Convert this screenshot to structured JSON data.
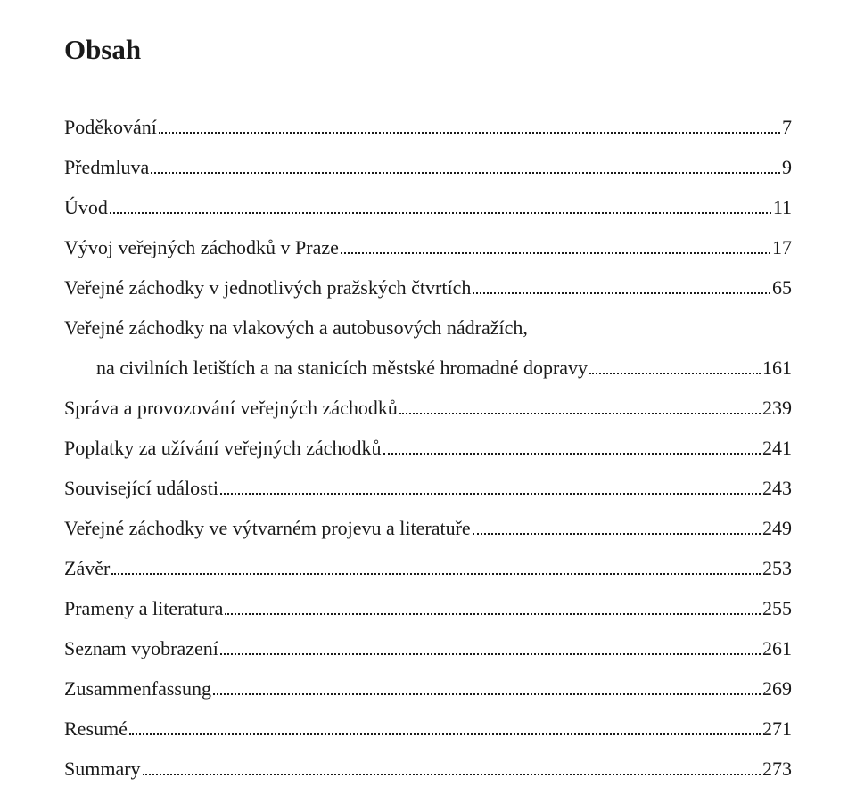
{
  "title": "Obsah",
  "entries": [
    {
      "label": "Poděkování",
      "page": "7"
    },
    {
      "label": "Předmluva",
      "page": "9"
    },
    {
      "label": "Úvod",
      "page": "11"
    },
    {
      "label": "Vývoj veřejných záchodků v Praze",
      "page": "17"
    },
    {
      "label": "Veřejné záchodky v jednotlivých pražských čtvrtích",
      "page": "65"
    },
    {
      "label_line1": "Veřejné záchodky na vlakových a autobusových nádražích,",
      "label_line2": "na civilních letištích a na stanicích městské hromadné dopravy",
      "page": "161",
      "multiline": true
    },
    {
      "label": "Správa a provozování veřejných záchodků",
      "page": "239"
    },
    {
      "label": "Poplatky za užívání veřejných záchodků",
      "page": "241"
    },
    {
      "label": "Související události",
      "page": "243"
    },
    {
      "label": "Veřejné záchodky ve výtvarném projevu a literatuře",
      "page": "249"
    },
    {
      "label": "Závěr",
      "page": "253"
    },
    {
      "label": "Prameny a literatura",
      "page": "255"
    },
    {
      "label": "Seznam vyobrazení",
      "page": "261"
    },
    {
      "label": "Zusammenfassung",
      "page": "269"
    },
    {
      "label": "Resumé",
      "page": "271"
    },
    {
      "label": "Summary",
      "page": "273"
    }
  ]
}
